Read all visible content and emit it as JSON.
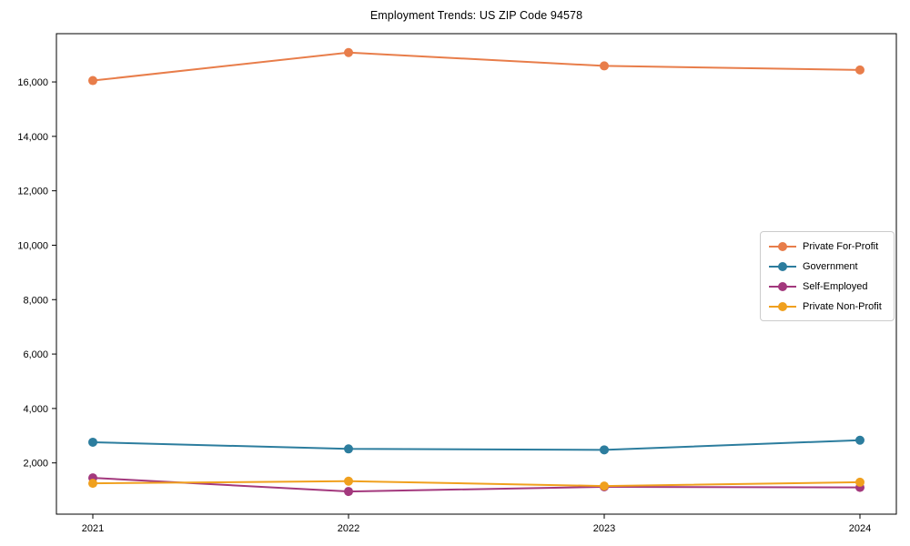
{
  "chart_data": {
    "type": "line",
    "title": "Employment Trends: US ZIP Code 94578",
    "categories": [
      "2021",
      "2022",
      "2023",
      "2024"
    ],
    "series": [
      {
        "name": "Private For-Profit",
        "color": "#e87d4a",
        "values": [
          16050,
          17080,
          16590,
          16440
        ]
      },
      {
        "name": "Government",
        "color": "#2c7d9e",
        "values": [
          2760,
          2515,
          2480,
          2835
        ]
      },
      {
        "name": "Self-Employed",
        "color": "#a3387d",
        "values": [
          1450,
          950,
          1120,
          1100
        ]
      },
      {
        "name": "Private Non-Profit",
        "color": "#f0a01e",
        "values": [
          1250,
          1330,
          1150,
          1290
        ]
      }
    ],
    "xlabel": "",
    "ylabel": "",
    "ylim": [
      117,
      17774
    ],
    "yticks": [
      2000,
      4000,
      6000,
      8000,
      10000,
      12000,
      14000,
      16000
    ],
    "ytick_labels": [
      "2,000",
      "4,000",
      "6,000",
      "8,000",
      "10,000",
      "12,000",
      "14,000",
      "16,000"
    ],
    "grid": false,
    "legend_position": "center-right",
    "marker": "circle",
    "frame": "box"
  }
}
